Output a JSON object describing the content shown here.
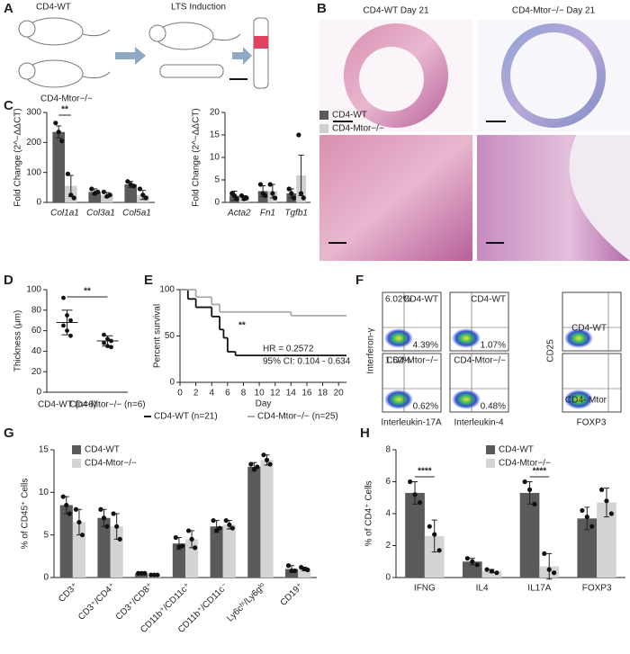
{
  "panel_labels": [
    "A",
    "B",
    "C",
    "D",
    "E",
    "F",
    "G",
    "H"
  ],
  "panel_a": {
    "labels": [
      "CD4-WT",
      "CD4-Mtor−/−",
      "LTS Induction"
    ]
  },
  "panel_b": {
    "titles": [
      "CD4-WT Day 21",
      "CD4-Mtor−/− Day 21"
    ]
  },
  "panel_f": {
    "y_label": "Interferon-γ",
    "x_labels": [
      "Interleukin-17A",
      "Interleukin-4",
      "FOXP3"
    ],
    "cd25_label": "CD25",
    "plots": [
      {
        "label": "CD4-WT",
        "percents": [
          "6.02%",
          "4.39%"
        ]
      },
      {
        "label": "CD4-Mtor−/−",
        "percents": [
          "1.62%",
          "0.62%"
        ]
      },
      {
        "label": "CD4-WT",
        "percents": [
          "1.07%"
        ]
      },
      {
        "label": "CD4-Mtor−/−",
        "percents": [
          "0.48%"
        ]
      },
      {
        "label": "CD4-WT",
        "percents": []
      },
      {
        "label": "CD4- Mtor",
        "percents": []
      }
    ]
  },
  "chart_data": [
    {
      "type": "bar",
      "y_label": "Fold Change (2^−ΔΔCT)",
      "categories": [
        "Col1a1",
        "Col3a1",
        "Col5a1"
      ],
      "ylim": [
        0,
        300
      ],
      "yticks": [
        0,
        100,
        200,
        300
      ],
      "annotations": [
        "**"
      ],
      "series": [
        {
          "name": "CD4-WT",
          "color": "#5a5a5a",
          "values": [
            235,
            35,
            60
          ],
          "errors": [
            20,
            10,
            10
          ],
          "points": [
            [
              265,
              235,
              205
            ],
            [
              45,
              30,
              35
            ],
            [
              70,
              60,
              55
            ]
          ]
        },
        {
          "name": "CD4-Mtor−/−",
          "color": "#cfcfcf",
          "values": [
            55,
            25,
            25
          ],
          "errors": [
            35,
            8,
            15
          ],
          "points": [
            [
              95,
              25,
              15
            ],
            [
              35,
              20,
              25
            ],
            [
              45,
              25,
              15
            ]
          ]
        }
      ]
    },
    {
      "type": "bar",
      "y_label": "Fold Change (2^−ΔΔCT)",
      "categories": [
        "Acta2",
        "Fn1",
        "Tgfb1"
      ],
      "ylim": [
        0,
        20
      ],
      "yticks": [
        0,
        5,
        10,
        15,
        20
      ],
      "legend": "right",
      "annotations": [],
      "series": [
        {
          "name": "CD4-WT",
          "color": "#5a5a5a",
          "values": [
            1.5,
            2.5,
            2
          ],
          "errors": [
            1,
            1.2,
            1
          ],
          "points": [
            [
              2,
              1.5,
              0.8
            ],
            [
              4,
              2,
              1.5
            ],
            [
              3,
              2,
              1
            ]
          ]
        },
        {
          "name": "CD4-Mtor−/−",
          "color": "#cfcfcf",
          "values": [
            1,
            2.5,
            6
          ],
          "errors": [
            0.5,
            1.5,
            4.5
          ],
          "points": [
            [
              1.5,
              0.8,
              1
            ],
            [
              4,
              2,
              1
            ],
            [
              15,
              2,
              1
            ]
          ]
        }
      ]
    },
    {
      "type": "dotplot",
      "y_label": "Thickness (μm)",
      "categories": [
        "CD4-WT (n=6)",
        "CD4-Mtor−/− (n=6)"
      ],
      "ylim": [
        0,
        100
      ],
      "yticks": [
        0,
        20,
        40,
        60,
        80,
        100
      ],
      "annotations": [
        "**"
      ],
      "values": [
        68,
        50
      ],
      "errors": [
        12,
        5
      ],
      "points": [
        [
          92,
          75,
          70,
          65,
          60,
          55
        ],
        [
          56,
          52,
          50,
          48,
          45,
          44
        ]
      ]
    },
    {
      "type": "step",
      "y_label": "Percent survival",
      "x_label": "Day",
      "xlim": [
        0,
        21
      ],
      "xticks": [
        0,
        2,
        4,
        6,
        8,
        10,
        12,
        14,
        16,
        18,
        20
      ],
      "ylim": [
        0,
        100
      ],
      "yticks": [
        0,
        50,
        100
      ],
      "legend": "bottom",
      "annotations": [
        "**",
        "HR = 0.2572",
        "95% CI: 0.104 - 0.634"
      ],
      "series": [
        {
          "name": "CD4-WT (n=21)",
          "color": "#111111",
          "x": [
            0,
            1,
            2,
            4,
            5,
            5.5,
            6,
            7,
            21
          ],
          "values": [
            100,
            90,
            81,
            71,
            57,
            48,
            33,
            29,
            29
          ]
        },
        {
          "name": "CD4-Mtor−/− (n=25)",
          "color": "#aaaaaa",
          "x": [
            0,
            2,
            4,
            5,
            14,
            21
          ],
          "values": [
            100,
            92,
            84,
            76,
            72,
            72
          ]
        }
      ]
    },
    {
      "type": "bar",
      "y_label": "% of CD45⁺ Cells",
      "categories": [
        "CD3⁺",
        "CD3⁺/CD4⁺",
        "CD3⁺/CD8⁺",
        "CD11b⁺/CD11c⁺",
        "CD11b⁺/CD11c⁻",
        "Ly6cʰⁱ/Ly6gˡᵒ",
        "CD19⁺"
      ],
      "ylim": [
        0,
        15
      ],
      "yticks": [
        0,
        5,
        10,
        15
      ],
      "legend": "top-left",
      "annotations": [],
      "series": [
        {
          "name": "CD4-WT",
          "color": "#5a5a5a",
          "values": [
            8.5,
            7,
            0.5,
            4,
            6,
            13,
            1
          ],
          "errors": [
            1,
            1,
            0.1,
            0.7,
            0.7,
            0.5,
            0.4
          ],
          "points": [
            [
              9.5,
              8.5,
              7.5
            ],
            [
              8,
              7,
              6
            ],
            [
              0.5,
              0.5,
              0.5
            ],
            [
              4.7,
              3.6,
              3.7
            ],
            [
              6.7,
              5.5,
              5.8
            ],
            [
              13.3,
              12.7,
              13.0
            ],
            [
              1.4,
              0.8,
              0.8
            ]
          ]
        },
        {
          "name": "CD4-Mtor−/−",
          "color": "#d4d4d4",
          "values": [
            6.5,
            6,
            0.3,
            4.5,
            6.2,
            13.8,
            1
          ],
          "errors": [
            1.5,
            1.5,
            0.1,
            1,
            0.5,
            0.6,
            0.2
          ],
          "points": [
            [
              8,
              6.5,
              5
            ],
            [
              7.5,
              6,
              4.5
            ],
            [
              0.3,
              0.3,
              0.3
            ],
            [
              5.5,
              4.5,
              3.5
            ],
            [
              6.7,
              6.2,
              5.8
            ],
            [
              14.4,
              13.8,
              13.3
            ],
            [
              1.2,
              1,
              0.9
            ]
          ]
        }
      ]
    },
    {
      "type": "bar",
      "y_label": "% of CD4⁺ Cells",
      "categories": [
        "IFNG",
        "IL4",
        "IL17A",
        "FOXP3"
      ],
      "ylim": [
        0,
        8
      ],
      "yticks": [
        0,
        2,
        4,
        6,
        8
      ],
      "legend": "top-right",
      "annotations": [
        "****",
        "****"
      ],
      "series": [
        {
          "name": "CD4-WT",
          "color": "#5a5a5a",
          "values": [
            5.3,
            1.0,
            5.3,
            3.7
          ],
          "errors": [
            0.7,
            0.2,
            0.7,
            0.7
          ],
          "points": [
            [
              6,
              5.2,
              4.7
            ],
            [
              1.2,
              1.0,
              0.8
            ],
            [
              6,
              5.5,
              4.6
            ],
            [
              4.2,
              3.8,
              3.2
            ]
          ]
        },
        {
          "name": "CD4-Mtor−/−",
          "color": "#d4d4d4",
          "values": [
            2.6,
            0.4,
            0.7,
            4.7
          ],
          "errors": [
            1,
            0.1,
            0.8,
            0.9
          ],
          "points": [
            [
              3.2,
              2.7,
              1.7
            ],
            [
              0.5,
              0.4,
              0.3
            ],
            [
              1.5,
              0.5,
              0.3
            ],
            [
              5.5,
              4.8,
              4
            ]
          ]
        }
      ]
    }
  ]
}
